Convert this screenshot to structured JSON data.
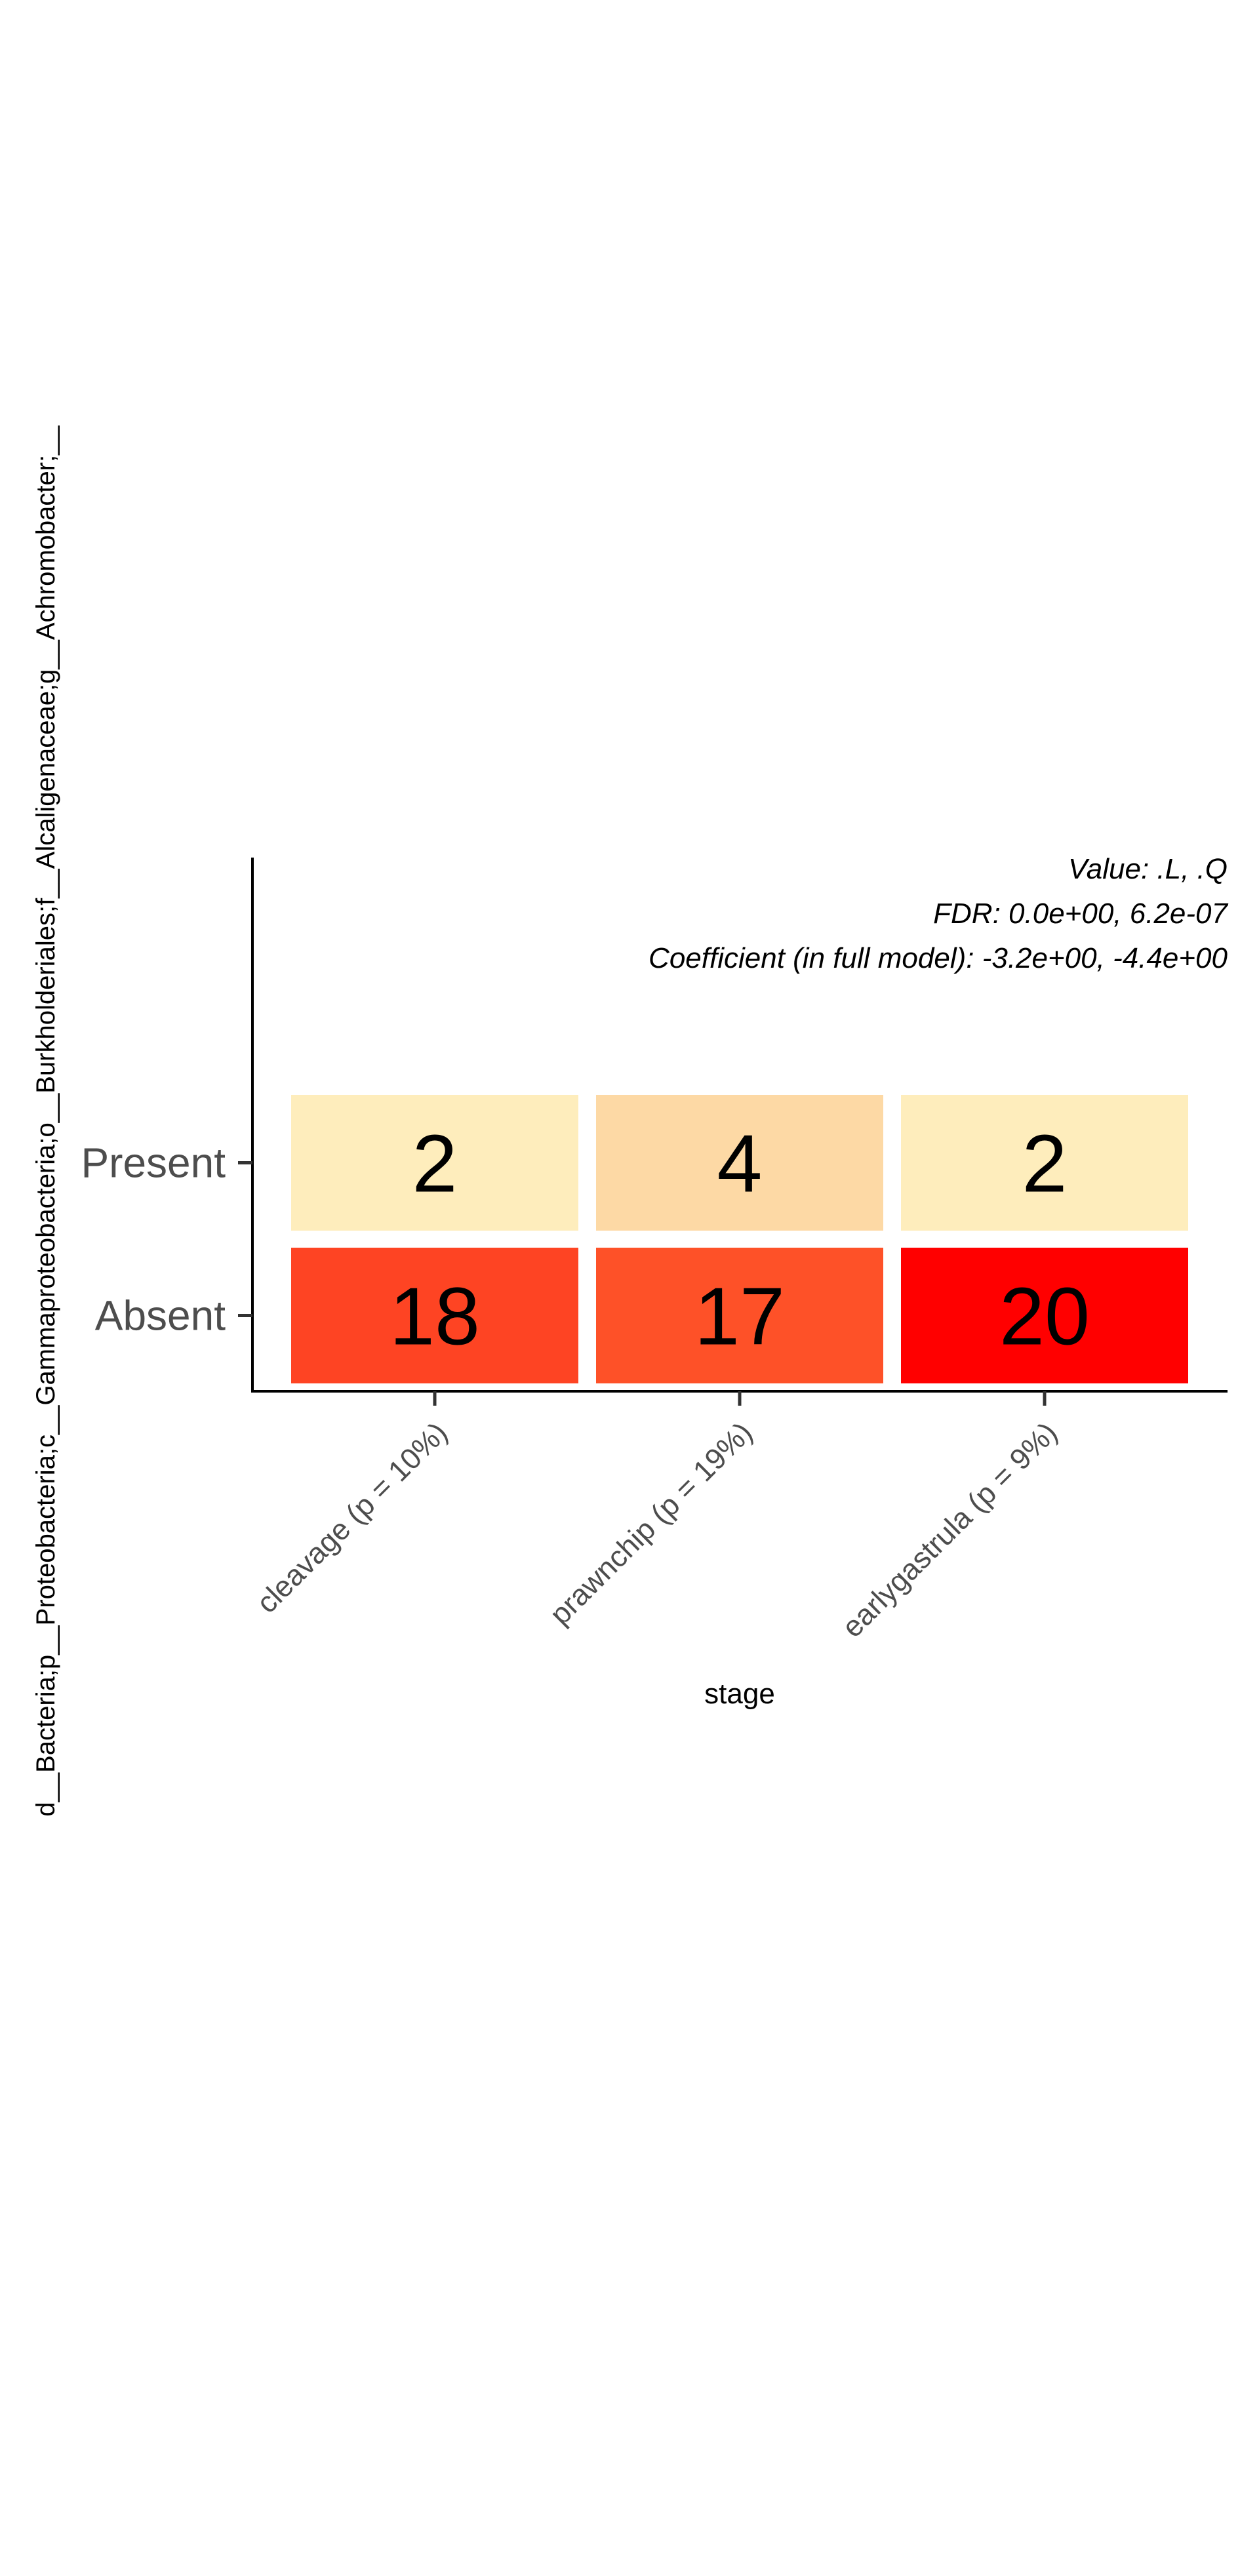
{
  "chart_data": {
    "type": "heatmap",
    "title": "",
    "xlabel": "stage",
    "ylabel": "d__Bacteria;p__Proteobacteria;c__Gammaproteobacteria;o__Burkholderiales;f__Alcaligenaceae;g__Achromobacter;__",
    "x_categories": [
      "cleavage (p = 10%)",
      "prawnchip (p = 19%)",
      "earlygastrula (p = 9%)"
    ],
    "y_categories": [
      "Present",
      "Absent"
    ],
    "values": [
      [
        2,
        4,
        2
      ],
      [
        18,
        17,
        20
      ]
    ],
    "cell_colors": [
      [
        "#FEEDBC",
        "#FDD9A5",
        "#FEEDBC"
      ],
      [
        "#FE4423",
        "#FE5128",
        "#FF0000"
      ]
    ],
    "annotations": [
      "Value: .L, .Q",
      "FDR: 0.0e+00, 6.2e-07",
      "Coefficient (in full model): -3.2e+00, -4.4e+00"
    ],
    "grid": false,
    "legend": "none"
  }
}
